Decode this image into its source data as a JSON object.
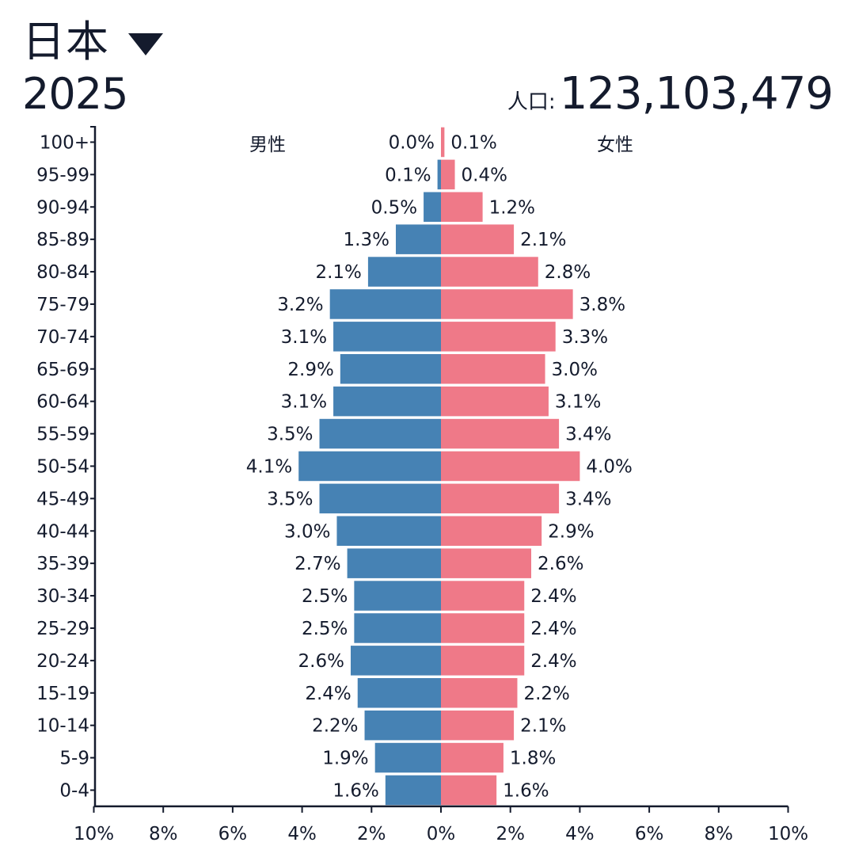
{
  "header": {
    "country": "日本",
    "year": "2025",
    "population_label": "人口:",
    "population_value": "123,103,479"
  },
  "colors": {
    "male": "#4682b4",
    "female": "#ef7988",
    "axis": "#141b2d"
  },
  "chart_data": {
    "type": "bar",
    "orientation": "horizontal-pyramid",
    "categories": [
      "0-4",
      "5-9",
      "10-14",
      "15-19",
      "20-24",
      "25-29",
      "30-34",
      "35-39",
      "40-44",
      "45-49",
      "50-54",
      "55-59",
      "60-64",
      "65-69",
      "70-74",
      "75-79",
      "80-84",
      "85-89",
      "90-94",
      "95-99",
      "100+"
    ],
    "series": [
      {
        "name": "男性",
        "side": "left",
        "values": [
          1.6,
          1.9,
          2.2,
          2.4,
          2.6,
          2.5,
          2.5,
          2.7,
          3.0,
          3.5,
          4.1,
          3.5,
          3.1,
          2.9,
          3.1,
          3.2,
          2.1,
          1.3,
          0.5,
          0.1,
          0.0
        ],
        "labels": [
          "1.6%",
          "1.9%",
          "2.2%",
          "2.4%",
          "2.6%",
          "2.5%",
          "2.5%",
          "2.7%",
          "3.0%",
          "3.5%",
          "4.1%",
          "3.5%",
          "3.1%",
          "2.9%",
          "3.1%",
          "3.2%",
          "2.1%",
          "1.3%",
          "0.5%",
          "0.1%",
          "0.0%"
        ]
      },
      {
        "name": "女性",
        "side": "right",
        "values": [
          1.6,
          1.8,
          2.1,
          2.2,
          2.4,
          2.4,
          2.4,
          2.6,
          2.9,
          3.4,
          4.0,
          3.4,
          3.1,
          3.0,
          3.3,
          3.8,
          2.8,
          2.1,
          1.2,
          0.4,
          0.1
        ],
        "labels": [
          "1.6%",
          "1.8%",
          "2.1%",
          "2.2%",
          "2.4%",
          "2.4%",
          "2.4%",
          "2.6%",
          "2.9%",
          "3.4%",
          "4.0%",
          "3.4%",
          "3.1%",
          "3.0%",
          "3.3%",
          "3.8%",
          "2.8%",
          "2.1%",
          "1.2%",
          "0.4%",
          "0.1%"
        ]
      }
    ],
    "x_ticks": [
      "10%",
      "8%",
      "6%",
      "4%",
      "2%",
      "0%",
      "2%",
      "4%",
      "6%",
      "8%",
      "10%"
    ],
    "xlim": [
      -10,
      10
    ]
  }
}
